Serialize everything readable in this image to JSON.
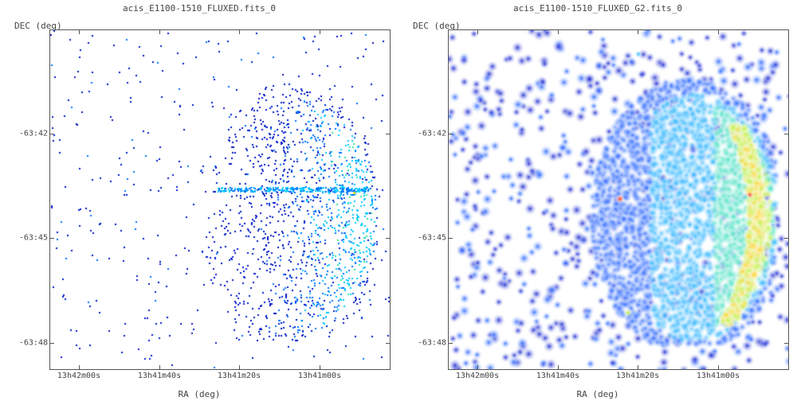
{
  "chart_data": [
    {
      "type": "heatmap",
      "title": "acis_E1100-1510_FLUXED.fits_0",
      "xlabel": "RA (deg)",
      "ylabel": "DEC (deg)",
      "x_ticks": [
        "13h42m00s",
        "13h41m40s",
        "13h41m20s",
        "13h41m00s"
      ],
      "y_ticks": [
        "-63:42",
        "-63:45",
        "-63:48"
      ],
      "style": "raw event counts (sparse pixels)",
      "colormap": [
        "#0018c8",
        "#0070ff",
        "#00c8ff",
        "#30e0a0",
        "#e0e020",
        "#ff3010"
      ]
    },
    {
      "type": "heatmap",
      "title": "acis_E1100-1510_FLUXED_G2.fits_0",
      "xlabel": "RA (deg)",
      "ylabel": "DEC (deg)",
      "x_ticks": [
        "13h42m00s",
        "13h41m40s",
        "13h41m20s",
        "13h41m00s"
      ],
      "y_ticks": [
        "-63:42",
        "-63:45",
        "-63:48"
      ],
      "style": "gaussian-smoothed (G2)",
      "colormap": [
        "#1020d0",
        "#2060ff",
        "#20b0ff",
        "#40e0c0",
        "#c0f040",
        "#ffd020",
        "#ff3010"
      ]
    }
  ]
}
